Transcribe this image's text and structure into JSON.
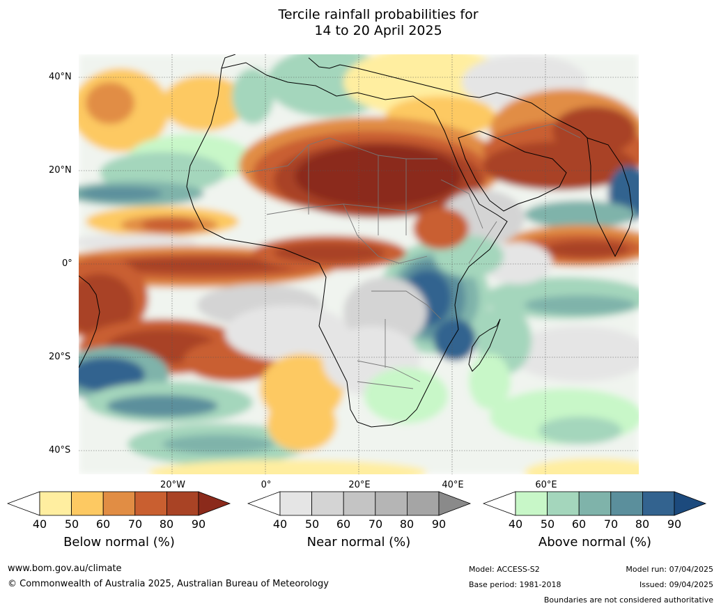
{
  "title": {
    "line1": "Tercile rainfall probabilities for",
    "line2": "14 to 20 April 2025"
  },
  "map": {
    "lat_labels": [
      "40°N",
      "20°N",
      "0°",
      "20°S",
      "40°S"
    ],
    "lon_labels": [
      "20°W",
      "0°",
      "20°E",
      "40°E",
      "60°E"
    ]
  },
  "colorbars": [
    {
      "name": "below",
      "title": "Below normal (%)",
      "ticks": [
        "40",
        "50",
        "60",
        "70",
        "80",
        "90"
      ],
      "colors": [
        "#ffeea0",
        "#fdc962",
        "#e18d44",
        "#c95f30",
        "#a94325",
        "#8b2a1b"
      ]
    },
    {
      "name": "near",
      "title": "Near normal (%)",
      "ticks": [
        "40",
        "50",
        "60",
        "70",
        "80",
        "90"
      ],
      "colors": [
        "#e5e5e5",
        "#d4d4d4",
        "#c4c4c4",
        "#b5b5b5",
        "#a5a5a5",
        "#8a8a8a"
      ]
    },
    {
      "name": "above",
      "title": "Above normal (%)",
      "ticks": [
        "40",
        "50",
        "60",
        "70",
        "80",
        "90"
      ],
      "colors": [
        "#c8f7c8",
        "#a4d6bc",
        "#7fb3aa",
        "#5b8f9c",
        "#33638f",
        "#1c4a7d"
      ]
    }
  ],
  "footer": {
    "url": "www.bom.gov.au/climate",
    "copyright": "© Commonwealth of Australia 2025, Australian Bureau of Meteorology",
    "model": "Model: ACCESS-S2",
    "base_period": "Base period: 1981-2018",
    "model_run": "Model run: 07/04/2025",
    "issued": "Issued: 09/04/2025",
    "disclaimer": "Boundaries are not considered authoritative"
  }
}
